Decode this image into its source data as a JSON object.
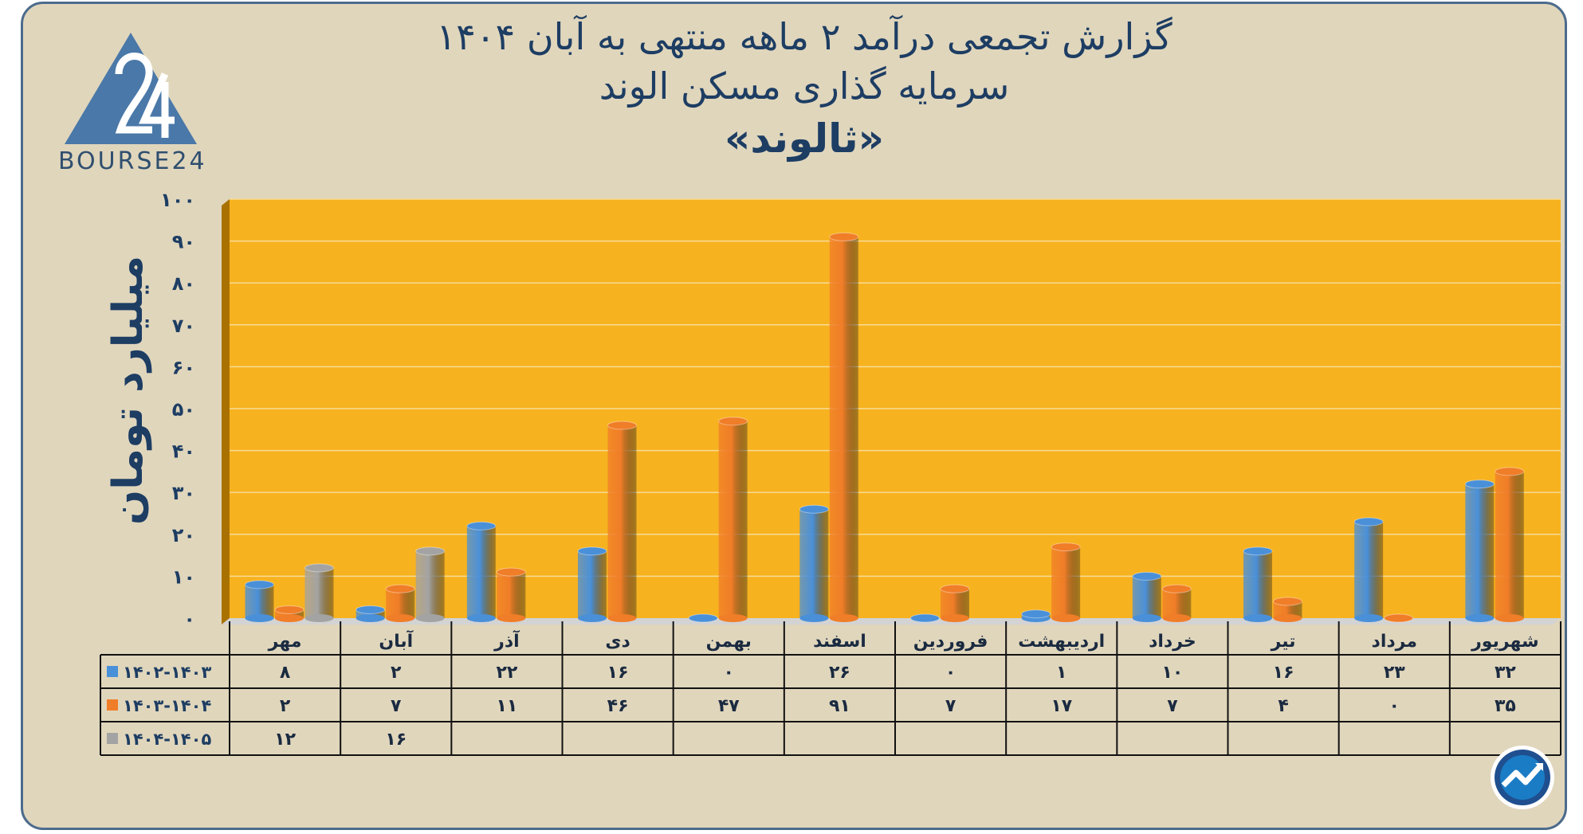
{
  "header": {
    "title_line1": "گزارش تجمعی درآمد ۲ ماهه منتهی به آبان ۱۴۰۴",
    "title_line2": "سرمایه گذاری مسکن الوند",
    "title_line3": "«ثالوند»"
  },
  "logo": {
    "icon": "bourse24-triangle-logo",
    "text": "BOURSE24"
  },
  "badge_icon": "chart-trend-arrow-icon",
  "colors": {
    "background": "#e0d6bc",
    "plot": "#f7b21f",
    "series1": "#4a90d9",
    "series2": "#f07d28",
    "series3": "#a3a3a3",
    "title": "#1d3d63"
  },
  "chart_data": {
    "type": "bar",
    "ylabel": "میلیارد تومان",
    "ylim": [
      0,
      100
    ],
    "yticks": [
      "۰",
      "۱۰",
      "۲۰",
      "۳۰",
      "۴۰",
      "۵۰",
      "۶۰",
      "۷۰",
      "۸۰",
      "۹۰",
      "۱۰۰"
    ],
    "categories": [
      "مهر",
      "آبان",
      "آذر",
      "دی",
      "بهمن",
      "اسفند",
      "فروردین",
      "اردیبهشت",
      "خرداد",
      "تیر",
      "مرداد",
      "شهریور"
    ],
    "series": [
      {
        "name": "۱۴۰۲-۱۴۰۳",
        "color": "#4a90d9",
        "values": [
          8,
          2,
          22,
          16,
          0,
          26,
          0,
          1,
          10,
          16,
          23,
          32
        ],
        "labels": [
          "۸",
          "۲",
          "۲۲",
          "۱۶",
          "۰",
          "۲۶",
          "۰",
          "۱",
          "۱۰",
          "۱۶",
          "۲۳",
          "۳۲"
        ]
      },
      {
        "name": "۱۴۰۳-۱۴۰۴",
        "color": "#f07d28",
        "values": [
          2,
          7,
          11,
          46,
          47,
          91,
          7,
          17,
          7,
          4,
          0,
          35
        ],
        "labels": [
          "۲",
          "۷",
          "۱۱",
          "۴۶",
          "۴۷",
          "۹۱",
          "۷",
          "۱۷",
          "۷",
          "۴",
          "۰",
          "۳۵"
        ]
      },
      {
        "name": "۱۴۰۴-۱۴۰۵",
        "color": "#a3a3a3",
        "values": [
          12,
          16,
          null,
          null,
          null,
          null,
          null,
          null,
          null,
          null,
          null,
          null
        ],
        "labels": [
          "۱۲",
          "۱۶",
          "",
          "",
          "",
          "",
          "",
          "",
          "",
          "",
          "",
          ""
        ]
      }
    ],
    "grid": true,
    "legend": "data-table"
  }
}
